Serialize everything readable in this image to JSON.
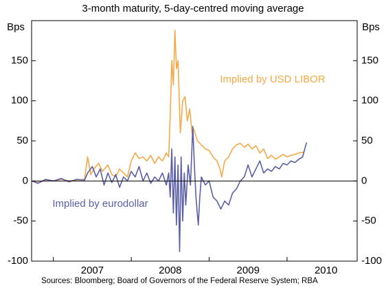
{
  "chart_data": {
    "type": "line",
    "subtitle": "3-month maturity, 5-day-centred moving average",
    "y_label": "Bps",
    "y2_label": "Bps",
    "source": "Sources: Bloomberg; Board of Governors of the Federal Reserve System; RBA",
    "xlim": [
      2006.72,
      2010.9
    ],
    "xticks": [
      2007,
      2008,
      2009,
      2010
    ],
    "ylim": [
      -100,
      200
    ],
    "yticks": [
      -100,
      -50,
      0,
      50,
      100,
      150
    ],
    "y2lim": [
      -100,
      200
    ],
    "y2ticks": [
      -100,
      -50,
      0,
      50,
      100,
      150
    ],
    "series": [
      {
        "name": "Implied by USD LIBOR",
        "color": "#f6a845",
        "x": [
          2006.72,
          2006.8,
          2006.9,
          2007.0,
          2007.1,
          2007.2,
          2007.3,
          2007.4,
          2007.44,
          2007.48,
          2007.52,
          2007.58,
          2007.63,
          2007.7,
          2007.75,
          2007.8,
          2007.85,
          2007.9,
          2007.95,
          2008.0,
          2008.05,
          2008.1,
          2008.15,
          2008.2,
          2008.25,
          2008.3,
          2008.35,
          2008.4,
          2008.45,
          2008.48,
          2008.5,
          2008.52,
          2008.54,
          2008.56,
          2008.58,
          2008.6,
          2008.63,
          2008.66,
          2008.69,
          2008.72,
          2008.75,
          2008.78,
          2008.8,
          2008.85,
          2008.9,
          2008.95,
          2009.0,
          2009.05,
          2009.1,
          2009.14,
          2009.16,
          2009.2,
          2009.25,
          2009.3,
          2009.35,
          2009.4,
          2009.45,
          2009.5,
          2009.55,
          2009.6,
          2009.65,
          2009.7,
          2009.75,
          2009.8,
          2009.85,
          2009.9,
          2009.95,
          2010.0,
          2010.05,
          2010.1,
          2010.15,
          2010.22
        ],
        "values": [
          0,
          -2,
          1,
          0,
          2,
          0,
          1,
          2,
          30,
          8,
          15,
          22,
          12,
          20,
          8,
          5,
          15,
          10,
          5,
          25,
          35,
          28,
          30,
          25,
          32,
          22,
          30,
          25,
          35,
          30,
          80,
          150,
          120,
          188,
          140,
          150,
          60,
          100,
          105,
          75,
          90,
          60,
          65,
          50,
          45,
          40,
          38,
          30,
          25,
          15,
          5,
          25,
          30,
          40,
          45,
          47,
          42,
          46,
          40,
          44,
          35,
          40,
          28,
          32,
          27,
          30,
          33,
          30,
          32,
          33,
          35,
          36
        ]
      },
      {
        "name": "Implied by eurodollar",
        "color": "#5a5ea8",
        "x": [
          2006.72,
          2006.8,
          2006.9,
          2007.0,
          2007.1,
          2007.2,
          2007.3,
          2007.4,
          2007.44,
          2007.5,
          2007.55,
          2007.6,
          2007.65,
          2007.7,
          2007.75,
          2007.8,
          2007.85,
          2007.9,
          2007.95,
          2008.0,
          2008.05,
          2008.1,
          2008.15,
          2008.2,
          2008.25,
          2008.3,
          2008.35,
          2008.4,
          2008.45,
          2008.48,
          2008.5,
          2008.52,
          2008.54,
          2008.56,
          2008.58,
          2008.6,
          2008.62,
          2008.64,
          2008.66,
          2008.68,
          2008.7,
          2008.73,
          2008.76,
          2008.79,
          2008.81,
          2008.83,
          2008.86,
          2008.88,
          2008.9,
          2008.95,
          2009.0,
          2009.05,
          2009.1,
          2009.15,
          2009.2,
          2009.25,
          2009.3,
          2009.35,
          2009.4,
          2009.45,
          2009.5,
          2009.55,
          2009.6,
          2009.65,
          2009.7,
          2009.75,
          2009.8,
          2009.85,
          2009.9,
          2009.95,
          2010.0,
          2010.05,
          2010.1,
          2010.15,
          2010.2,
          2010.25
        ],
        "values": [
          0,
          -3,
          2,
          0,
          3,
          -1,
          2,
          1,
          10,
          18,
          5,
          15,
          -5,
          10,
          -2,
          8,
          -8,
          5,
          0,
          12,
          5,
          18,
          0,
          10,
          -3,
          5,
          0,
          10,
          -5,
          10,
          -20,
          40,
          -40,
          30,
          -55,
          20,
          -88,
          30,
          -50,
          10,
          -30,
          20,
          -5,
          68,
          20,
          -20,
          -55,
          -20,
          5,
          -5,
          0,
          -20,
          -25,
          -35,
          -25,
          -30,
          -15,
          -10,
          0,
          5,
          20,
          5,
          15,
          25,
          10,
          15,
          12,
          18,
          15,
          22,
          20,
          25,
          23,
          27,
          30,
          48
        ]
      }
    ]
  }
}
